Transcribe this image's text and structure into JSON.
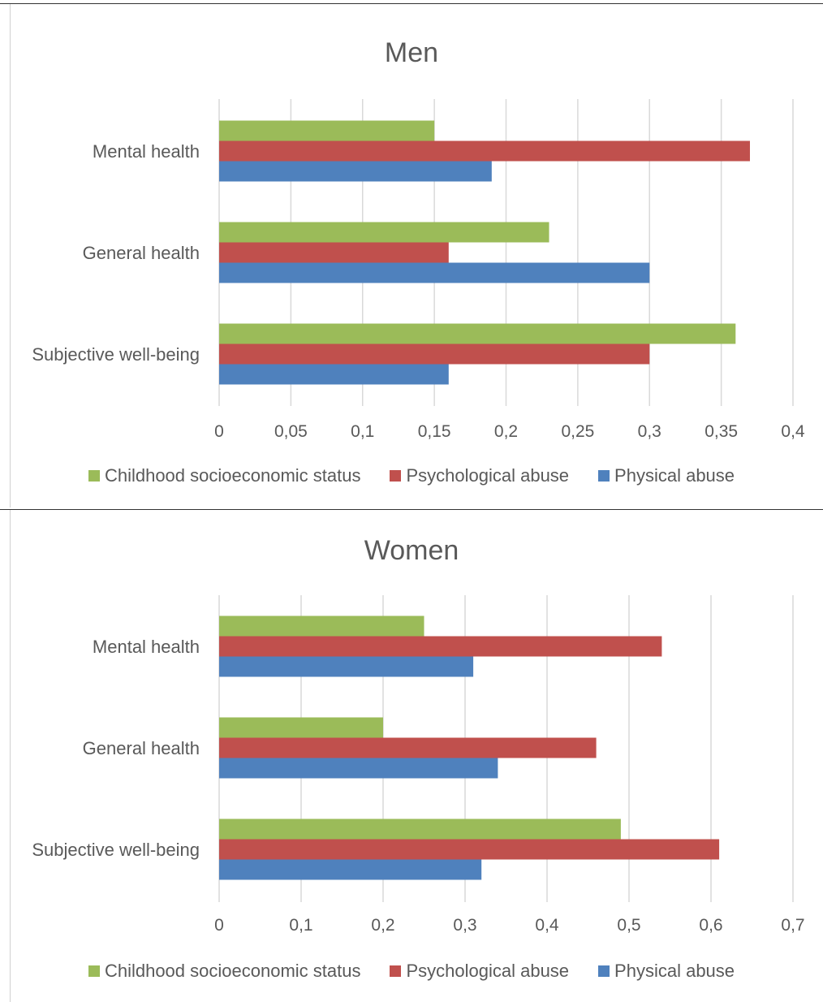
{
  "chart_data": [
    {
      "type": "bar",
      "orientation": "horizontal",
      "title": "Men",
      "categories": [
        "Mental health",
        "General health",
        "Subjective well-being"
      ],
      "series": [
        {
          "name": "Childhood socioeconomic status",
          "color": "#9BBB59",
          "values": [
            0.15,
            0.23,
            0.36
          ]
        },
        {
          "name": "Psychological abuse",
          "color": "#C0504D",
          "values": [
            0.37,
            0.16,
            0.3
          ]
        },
        {
          "name": "Physical abuse",
          "color": "#4F81BD",
          "values": [
            0.19,
            0.3,
            0.16
          ]
        }
      ],
      "xlim": [
        0,
        0.4
      ],
      "xticks": [
        "0",
        "0,05",
        "0,1",
        "0,15",
        "0,2",
        "0,25",
        "0,3",
        "0,35",
        "0,4"
      ],
      "grid": "vertical",
      "legend": "bottom"
    },
    {
      "type": "bar",
      "orientation": "horizontal",
      "title": "Women",
      "categories": [
        "Mental health",
        "General health",
        "Subjective well-being"
      ],
      "series": [
        {
          "name": "Childhood socioeconomic status",
          "color": "#9BBB59",
          "values": [
            0.25,
            0.2,
            0.49
          ]
        },
        {
          "name": "Psychological abuse",
          "color": "#C0504D",
          "values": [
            0.54,
            0.46,
            0.61
          ]
        },
        {
          "name": "Physical abuse",
          "color": "#4F81BD",
          "values": [
            0.31,
            0.34,
            0.32
          ]
        }
      ],
      "xlim": [
        0,
        0.7
      ],
      "xticks": [
        "0",
        "0,1",
        "0,2",
        "0,3",
        "0,4",
        "0,5",
        "0,6",
        "0,7"
      ],
      "grid": "vertical",
      "legend": "bottom"
    }
  ]
}
